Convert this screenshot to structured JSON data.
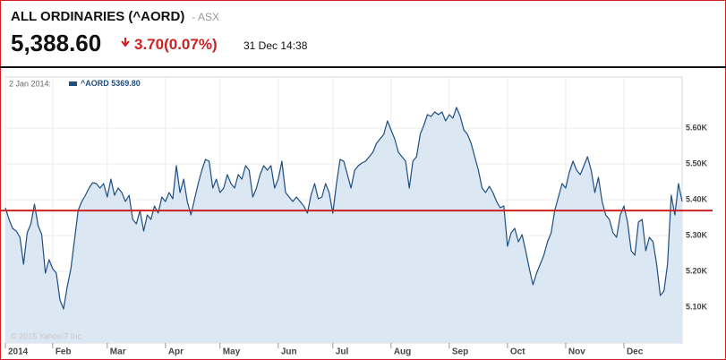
{
  "header": {
    "title": "ALL ORDINARIES (^AORD)",
    "exchange": "- ASX",
    "price": "5,388.60",
    "change": "3.70",
    "change_percent": "(0.07%)",
    "timestamp": "31 Dec 14:38"
  },
  "chart_data": {
    "type": "area",
    "legend_date": "2 Jan 2014:",
    "series": [
      {
        "name": "^AORD",
        "color": "#1f4e80",
        "fill": "#dbe7f3",
        "values": [
          5377.5,
          5345,
          5320,
          5312.5,
          5295,
          5220,
          5307.5,
          5332.5,
          5387.5,
          5327.5,
          5302.5,
          5195,
          5232.5,
          5207.5,
          5195,
          5120,
          5095,
          5157.5,
          5207.5,
          5287.5,
          5370,
          5395,
          5412.5,
          5432.5,
          5447.5,
          5445,
          5432.5,
          5445,
          5407.5,
          5457.5,
          5412.5,
          5432.5,
          5420,
          5395,
          5412.5,
          5345,
          5332.5,
          5370,
          5312.5,
          5357.5,
          5345,
          5382.5,
          5362.5,
          5407.5,
          5395,
          5420,
          5402.5,
          5495,
          5420,
          5457.5,
          5395,
          5357.5,
          5402.5,
          5445,
          5482.5,
          5512.5,
          5507.5,
          5432.5,
          5457.5,
          5420,
          5432.5,
          5470,
          5445,
          5432.5,
          5470,
          5457.5,
          5495,
          5482.5,
          5407.5,
          5432.5,
          5470,
          5495,
          5482.5,
          5495,
          5432.5,
          5457.5,
          5507.5,
          5420,
          5407.5,
          5395,
          5407.5,
          5395,
          5382.5,
          5362.5,
          5412.5,
          5445,
          5402.5,
          5407.5,
          5445,
          5420,
          5362.5,
          5445,
          5512.5,
          5507.5,
          5470,
          5432.5,
          5482.5,
          5495,
          5502.5,
          5507.5,
          5520,
          5532.5,
          5557.5,
          5570,
          5582.5,
          5620,
          5595,
          5570,
          5532.5,
          5520,
          5507.5,
          5432.5,
          5507.5,
          5520,
          5582.5,
          5607.5,
          5637.5,
          5632.5,
          5645,
          5637.5,
          5645,
          5620,
          5637.5,
          5627.5,
          5657.5,
          5632.5,
          5595,
          5582.5,
          5557.5,
          5520,
          5482.5,
          5432.5,
          5420,
          5437.5,
          5420,
          5395,
          5377.5,
          5382.5,
          5270,
          5307.5,
          5320,
          5282.5,
          5302.5,
          5257.5,
          5207.5,
          5162.5,
          5195,
          5220,
          5245,
          5282.5,
          5307.5,
          5370,
          5407.5,
          5445,
          5432.5,
          5477.5,
          5507.5,
          5482.5,
          5470,
          5495,
          5520,
          5482.5,
          5420,
          5462.5,
          5395,
          5357.5,
          5345,
          5307.5,
          5295,
          5357.5,
          5382.5,
          5337.5,
          5257.5,
          5245,
          5337.5,
          5345,
          5257.5,
          5295,
          5282.5,
          5220,
          5132.5,
          5145,
          5220,
          5412.5,
          5357.5,
          5445,
          5395
        ]
      }
    ],
    "reference": {
      "value": 5369.8,
      "label": "5369.80",
      "color": "#cc2222"
    },
    "watermark": "© 2015 Yahoo!7 Inc.",
    "xlim": [
      0,
      186
    ],
    "xticks": [
      {
        "value": 0,
        "label": "2014"
      },
      {
        "value": 13,
        "label": "Feb"
      },
      {
        "value": 28,
        "label": "Mar"
      },
      {
        "value": 44,
        "label": "Apr"
      },
      {
        "value": 59,
        "label": "May"
      },
      {
        "value": 75,
        "label": "Jun"
      },
      {
        "value": 90,
        "label": "Jul"
      },
      {
        "value": 106,
        "label": "Aug"
      },
      {
        "value": 122,
        "label": "Sep"
      },
      {
        "value": 138,
        "label": "Oct"
      },
      {
        "value": 154,
        "label": "Nov"
      },
      {
        "value": 170,
        "label": "Dec"
      }
    ],
    "ylim": [
      5000,
      5742.5
    ],
    "yticks": [
      {
        "value": 5100,
        "label": "5.10K"
      },
      {
        "value": 5200,
        "label": "5.20K"
      },
      {
        "value": 5300,
        "label": "5.30K"
      },
      {
        "value": 5400,
        "label": "5.40K"
      },
      {
        "value": 5500,
        "label": "5.50K"
      },
      {
        "value": 5600,
        "label": "5.60K"
      }
    ],
    "grid": true
  }
}
